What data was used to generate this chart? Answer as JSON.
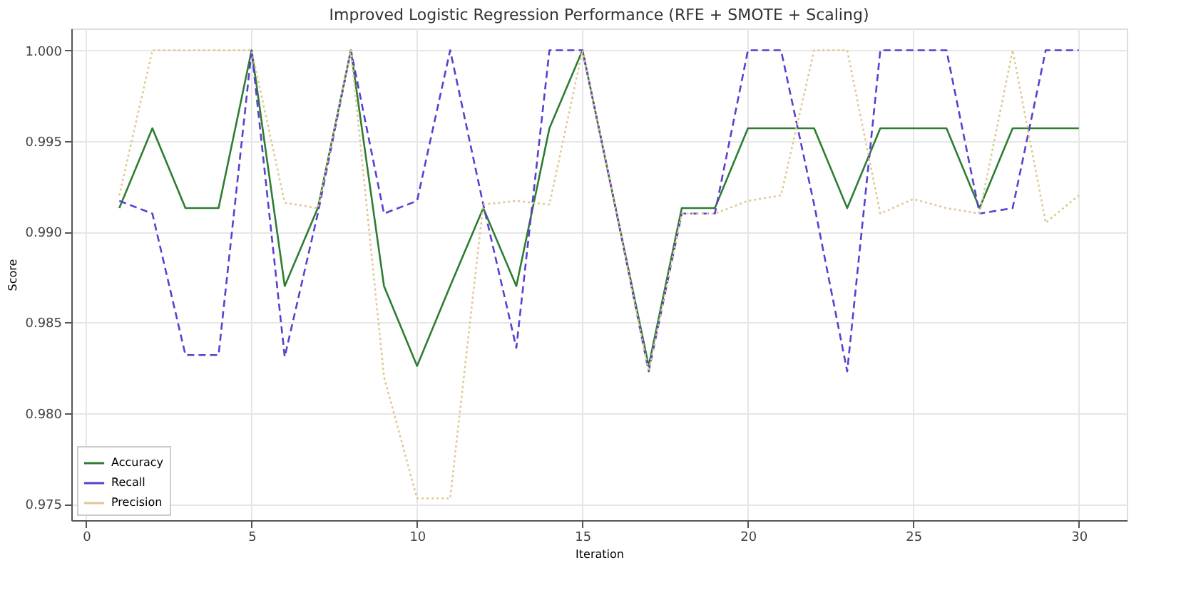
{
  "chart_data": {
    "type": "line",
    "title": "Improved Logistic Regression Performance (RFE + SMOTE + Scaling)",
    "xlabel": "Iteration",
    "ylabel": "Score",
    "x": [
      1,
      2,
      3,
      4,
      5,
      6,
      7,
      8,
      9,
      10,
      11,
      12,
      13,
      14,
      15,
      16,
      17,
      18,
      19,
      20,
      21,
      22,
      23,
      24,
      25,
      26,
      27,
      28,
      29,
      30
    ],
    "series": [
      {
        "name": "Accuracy",
        "color": "#2e7d32",
        "line_style": "solid",
        "values": [
          0.9913,
          0.9957,
          0.9913,
          0.9913,
          1.0,
          0.987,
          0.9913,
          1.0,
          0.987,
          0.9826,
          0.987,
          0.9913,
          0.987,
          0.9957,
          1.0,
          0.9913,
          0.9826,
          0.9913,
          0.9913,
          0.9957,
          0.9957,
          0.9957,
          0.9913,
          0.9957,
          0.9957,
          0.9957,
          0.9913,
          0.9957,
          0.9957,
          0.9957
        ]
      },
      {
        "name": "Recall",
        "color": "#5b3fd1",
        "line_style": "dashed",
        "values": [
          0.9917,
          0.991,
          0.9832,
          0.9832,
          1.0,
          0.9831,
          0.991,
          1.0,
          0.991,
          0.9917,
          1.0,
          0.9915,
          0.9836,
          1.0,
          1.0,
          0.9913,
          0.9823,
          0.991,
          0.991,
          1.0,
          1.0,
          0.9915,
          0.9823,
          1.0,
          1.0,
          1.0,
          0.991,
          0.9913,
          1.0,
          1.0
        ]
      },
      {
        "name": "Precision",
        "color": "#e0c890",
        "line_style": "dotted",
        "values": [
          0.992,
          1.0,
          1.0,
          1.0,
          1.0,
          0.9916,
          0.9913,
          1.0,
          0.982,
          0.9753,
          0.9753,
          0.9915,
          0.9917,
          0.9915,
          1.0,
          0.9913,
          0.9823,
          0.991,
          0.991,
          0.9917,
          0.992,
          1.0,
          1.0,
          0.991,
          0.9918,
          0.9913,
          0.991,
          1.0,
          0.9905,
          0.992
        ]
      }
    ],
    "xlim": [
      -0.45,
      31.45
    ],
    "xticks": [
      0,
      5,
      10,
      15,
      20,
      25,
      30
    ],
    "ylim": [
      0.9741,
      1.0012
    ],
    "yticks": [
      {
        "value": 0.975,
        "label": "0.975"
      },
      {
        "value": 0.98,
        "label": "0.980"
      },
      {
        "value": 0.985,
        "label": "0.985"
      },
      {
        "value": 0.99,
        "label": "0.990"
      },
      {
        "value": 0.995,
        "label": "0.995"
      },
      {
        "value": 1.0,
        "label": "1.000"
      }
    ],
    "grid": true,
    "legend": "bottom left",
    "marker": "none"
  }
}
